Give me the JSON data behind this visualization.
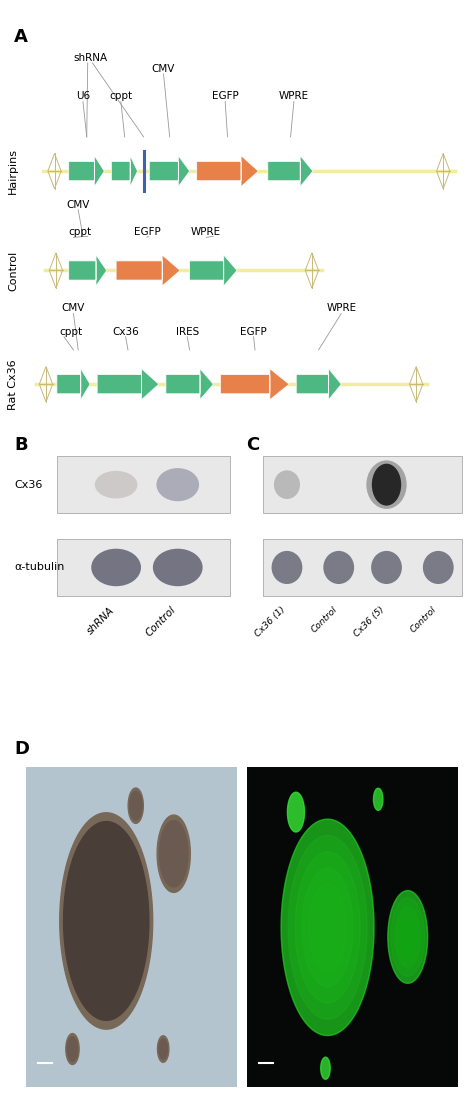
{
  "panel_A_label": "A",
  "panel_B_label": "B",
  "panel_C_label": "C",
  "panel_D_label": "D",
  "hairpins_label": "Hairpins",
  "control_label": "Control",
  "rat_cx36_label": "Rat Cx36",
  "arrow_green": "#4DB882",
  "arrow_orange": "#E8804A",
  "line_yellow": "#F0ECA0",
  "diamond_stroke": "#C8B87A",
  "blue_bar_color": "#4060B0",
  "blot_B_cx36_label": "Cx36",
  "blot_B_tubulin_label": "α-tubulin",
  "blot_B_samples": [
    "shRNA",
    "Control"
  ],
  "blot_C_samples": [
    "Cx36 (1)",
    "Control",
    "Cx36 (5)",
    "Control"
  ],
  "background_color": "#ffffff",
  "fig_w": 4.74,
  "fig_h": 11.04,
  "dpi": 100
}
